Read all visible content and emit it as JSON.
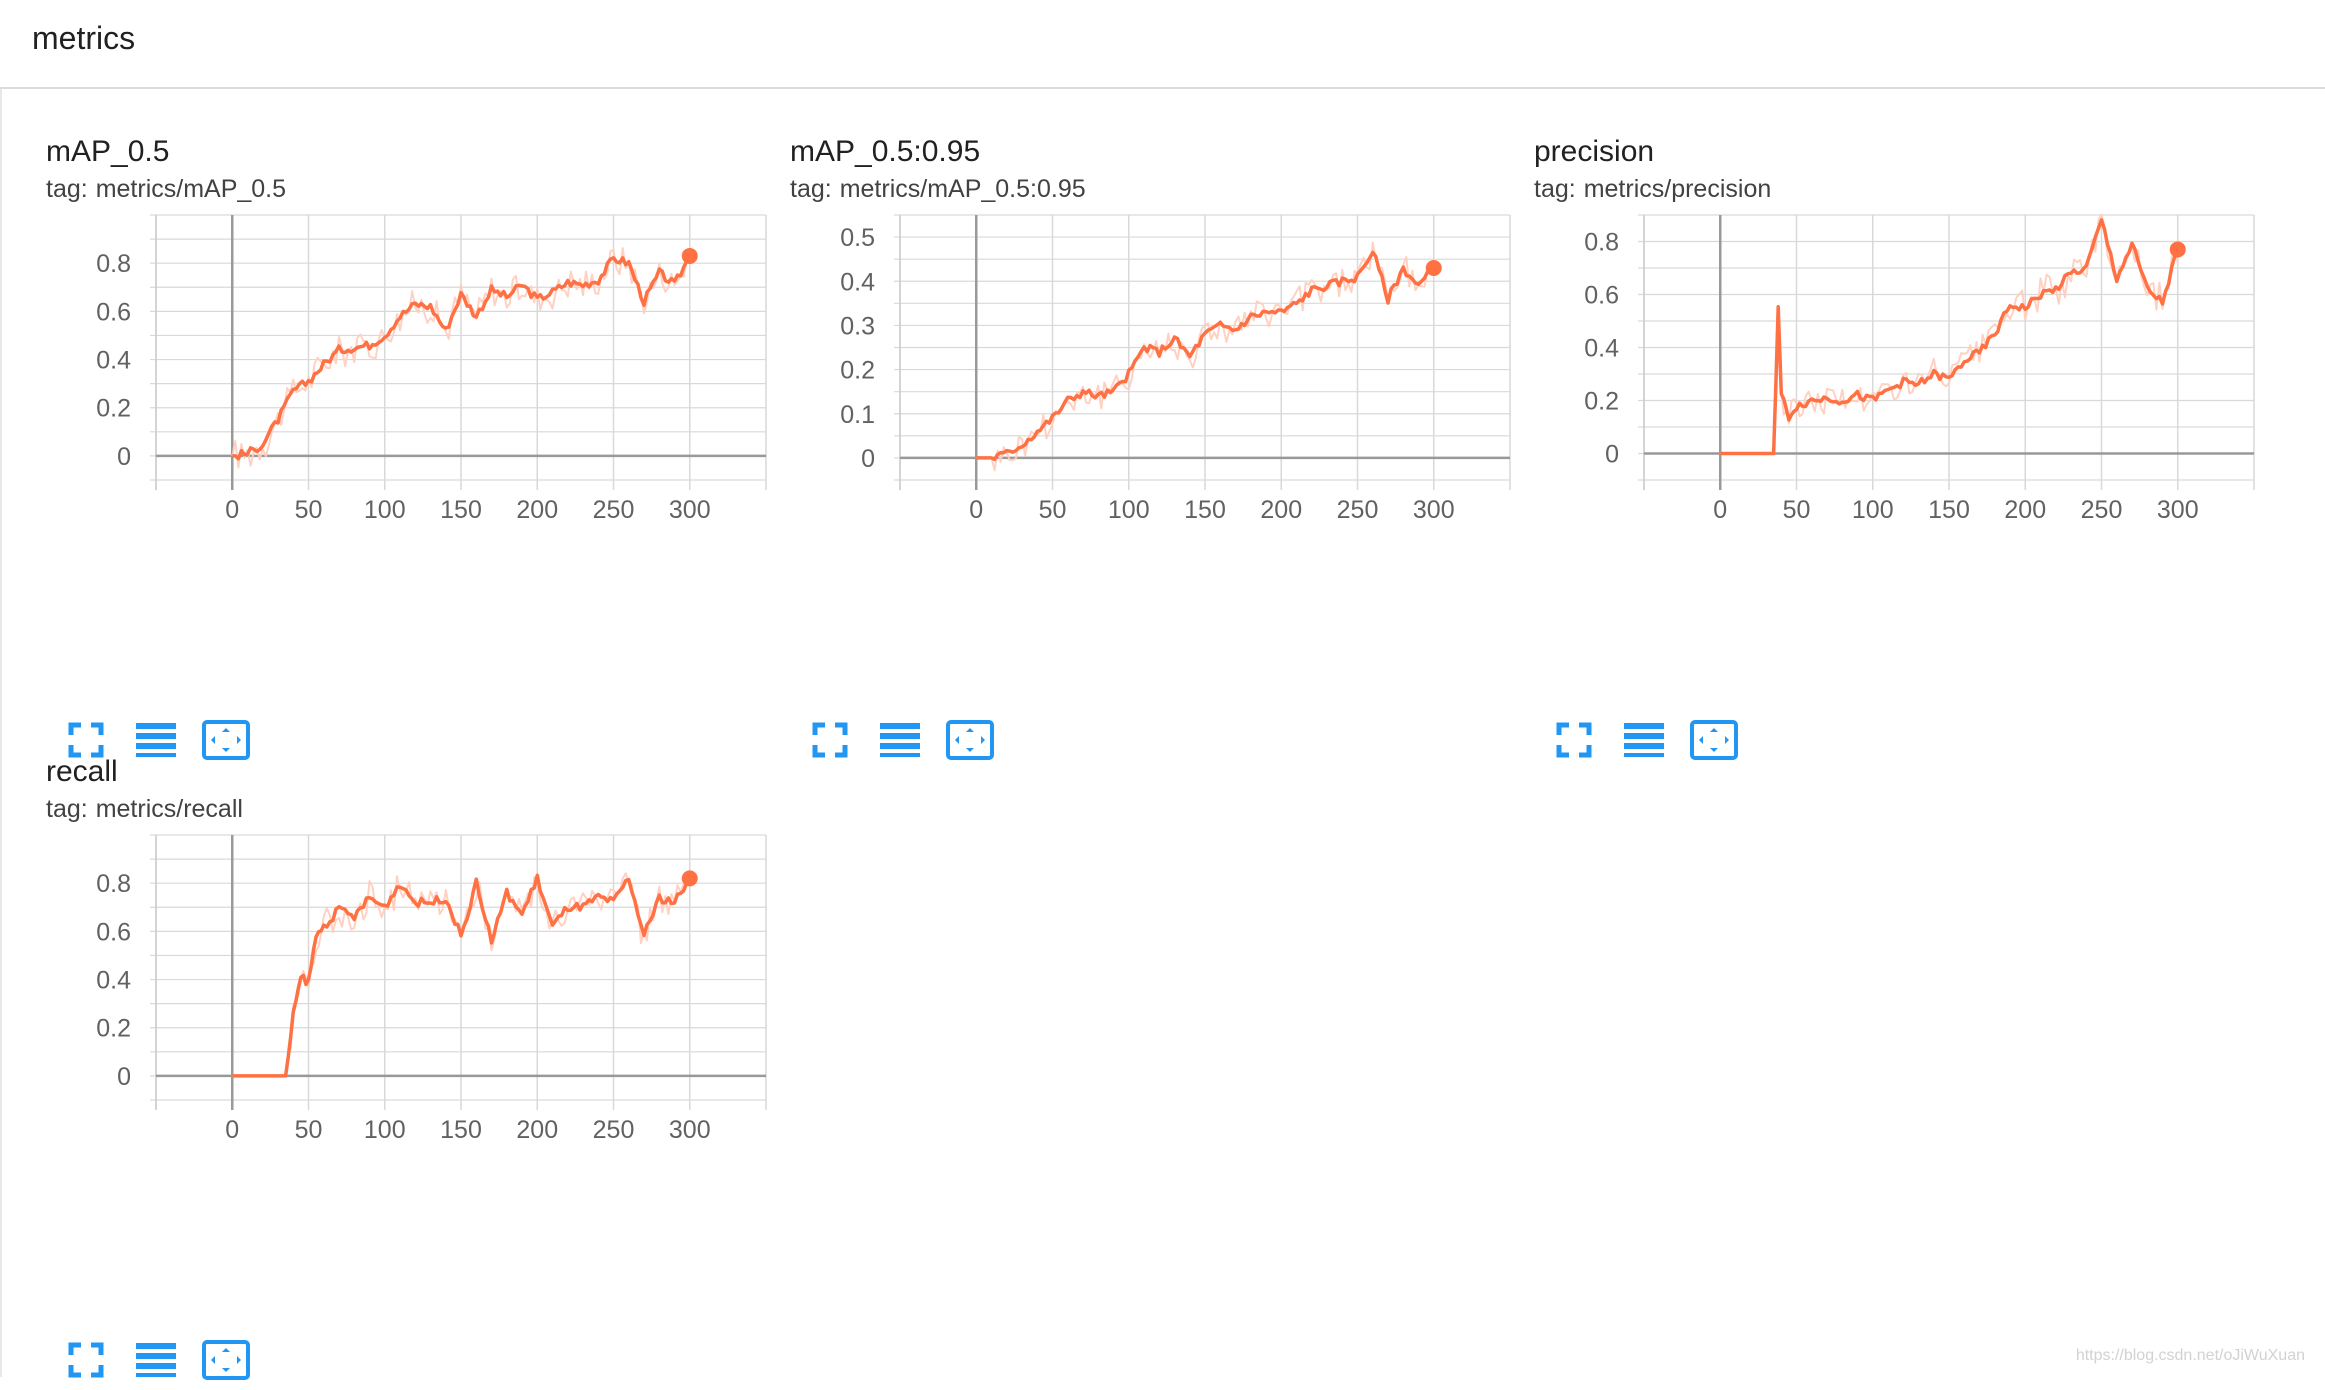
{
  "section": {
    "title": "metrics"
  },
  "colors": {
    "line": "#ff7043",
    "line_raw": "#ffccbc",
    "grid": "#d9d9d9",
    "axis": "#999999",
    "tick_text": "#616161",
    "tool_icon": "#2196f3"
  },
  "cards": [
    {
      "id": "map05",
      "title": "mAP_0.5",
      "tag_prefix": "tag:",
      "tag": "metrics/mAP_0.5"
    },
    {
      "id": "map0595",
      "title": "mAP_0.5:0.95",
      "tag_prefix": "tag:",
      "tag": "metrics/mAP_0.5:0.95"
    },
    {
      "id": "precision",
      "title": "precision",
      "tag_prefix": "tag:",
      "tag": "metrics/precision"
    },
    {
      "id": "recall",
      "title": "recall",
      "tag_prefix": "tag:",
      "tag": "metrics/recall"
    }
  ],
  "toolbar": {
    "icons": [
      "fullscreen-icon",
      "toggle-log-scale-icon",
      "fit-domain-icon"
    ]
  },
  "watermark": "https://blog.csdn.net/oJiWuXuan",
  "chart_data": [
    {
      "type": "line",
      "title": "mAP_0.5",
      "xlabel": "",
      "ylabel": "",
      "xlim": [
        -50,
        350
      ],
      "ylim": [
        -0.1,
        1.0
      ],
      "xticks": [
        0,
        50,
        100,
        150,
        200,
        250,
        300
      ],
      "yticks": [
        0,
        0.2,
        0.4,
        0.6,
        0.8
      ],
      "grid": true,
      "series": [
        {
          "x": [
            0,
            10,
            20,
            30,
            40,
            50,
            60,
            70,
            80,
            90,
            100,
            110,
            120,
            130,
            140,
            150,
            160,
            170,
            180,
            190,
            200,
            210,
            220,
            230,
            240,
            250,
            260,
            270,
            280,
            290,
            300
          ],
          "y": [
            0,
            0.01,
            0.05,
            0.15,
            0.27,
            0.31,
            0.38,
            0.44,
            0.45,
            0.46,
            0.5,
            0.58,
            0.63,
            0.62,
            0.52,
            0.67,
            0.58,
            0.69,
            0.66,
            0.71,
            0.65,
            0.68,
            0.72,
            0.71,
            0.73,
            0.82,
            0.8,
            0.64,
            0.76,
            0.71,
            0.83
          ]
        }
      ]
    },
    {
      "type": "line",
      "title": "mAP_0.5:0.95",
      "xlabel": "",
      "ylabel": "",
      "xlim": [
        -50,
        350
      ],
      "ylim": [
        -0.05,
        0.55
      ],
      "xticks": [
        0,
        50,
        100,
        150,
        200,
        250,
        300
      ],
      "yticks": [
        0,
        0.1,
        0.2,
        0.3,
        0.4,
        0.5
      ],
      "grid": true,
      "series": [
        {
          "x": [
            0,
            10,
            20,
            30,
            40,
            50,
            60,
            70,
            80,
            90,
            100,
            110,
            120,
            130,
            140,
            150,
            160,
            170,
            180,
            190,
            200,
            210,
            220,
            230,
            240,
            250,
            260,
            270,
            280,
            290,
            300
          ],
          "y": [
            0,
            0.0,
            0.01,
            0.03,
            0.06,
            0.09,
            0.13,
            0.15,
            0.14,
            0.15,
            0.19,
            0.25,
            0.24,
            0.27,
            0.23,
            0.28,
            0.3,
            0.29,
            0.32,
            0.33,
            0.33,
            0.35,
            0.38,
            0.39,
            0.4,
            0.41,
            0.47,
            0.36,
            0.43,
            0.39,
            0.43
          ]
        }
      ]
    },
    {
      "type": "line",
      "title": "precision",
      "xlabel": "",
      "ylabel": "",
      "xlim": [
        -50,
        350
      ],
      "ylim": [
        -0.1,
        0.9
      ],
      "xticks": [
        0,
        50,
        100,
        150,
        200,
        250,
        300
      ],
      "yticks": [
        0,
        0.2,
        0.4,
        0.6,
        0.8
      ],
      "grid": true,
      "series": [
        {
          "x": [
            0,
            10,
            20,
            30,
            35,
            38,
            40,
            45,
            50,
            60,
            70,
            80,
            90,
            100,
            110,
            120,
            130,
            140,
            150,
            160,
            170,
            180,
            190,
            200,
            210,
            220,
            230,
            240,
            250,
            260,
            270,
            280,
            290,
            300
          ],
          "y": [
            0,
            0,
            0,
            0,
            0.0,
            0.55,
            0.22,
            0.14,
            0.18,
            0.2,
            0.21,
            0.2,
            0.22,
            0.2,
            0.24,
            0.27,
            0.26,
            0.3,
            0.28,
            0.35,
            0.38,
            0.45,
            0.56,
            0.55,
            0.6,
            0.62,
            0.68,
            0.7,
            0.88,
            0.66,
            0.79,
            0.62,
            0.57,
            0.77
          ]
        }
      ]
    },
    {
      "type": "line",
      "title": "recall",
      "xlabel": "",
      "ylabel": "",
      "xlim": [
        -50,
        350
      ],
      "ylim": [
        -0.1,
        1.0
      ],
      "xticks": [
        0,
        50,
        100,
        150,
        200,
        250,
        300
      ],
      "yticks": [
        0,
        0.2,
        0.4,
        0.6,
        0.8
      ],
      "grid": true,
      "series": [
        {
          "x": [
            0,
            10,
            20,
            30,
            35,
            40,
            45,
            50,
            55,
            60,
            70,
            80,
            90,
            100,
            110,
            120,
            130,
            140,
            150,
            160,
            170,
            180,
            190,
            200,
            210,
            220,
            230,
            240,
            250,
            260,
            270,
            280,
            290,
            300
          ],
          "y": [
            0,
            0,
            0,
            0,
            0.0,
            0.25,
            0.41,
            0.39,
            0.58,
            0.62,
            0.69,
            0.66,
            0.74,
            0.7,
            0.8,
            0.72,
            0.72,
            0.74,
            0.58,
            0.8,
            0.56,
            0.76,
            0.67,
            0.82,
            0.62,
            0.7,
            0.7,
            0.74,
            0.72,
            0.82,
            0.58,
            0.74,
            0.72,
            0.82
          ]
        }
      ]
    }
  ]
}
